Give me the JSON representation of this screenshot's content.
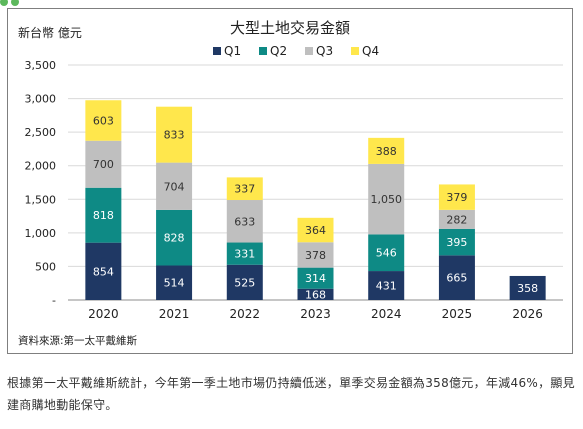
{
  "chart_data": {
    "type": "bar",
    "stacked": true,
    "title": "大型土地交易金額",
    "ylabel": "新台幣 億元",
    "xlabel": "",
    "categories": [
      "2020",
      "2021",
      "2022",
      "2023",
      "2024",
      "2025",
      "2026"
    ],
    "ylim": [
      0,
      3500
    ],
    "yticks": [
      0,
      500,
      1000,
      1500,
      2000,
      2500,
      3000,
      3500
    ],
    "ytick_labels": [
      "-",
      "500",
      "1,000",
      "1,500",
      "2,000",
      "2,500",
      "3,000",
      "3,500"
    ],
    "grid": true,
    "legend_position": "top-center",
    "series": [
      {
        "name": "Q1",
        "color": "#1f3864",
        "label_color": "#ffffff",
        "values": [
          854,
          514,
          525,
          168,
          431,
          665,
          358
        ]
      },
      {
        "name": "Q2",
        "color": "#0e8a85",
        "label_color": "#ffffff",
        "values": [
          818,
          828,
          331,
          314,
          546,
          395,
          null
        ]
      },
      {
        "name": "Q3",
        "color": "#bfbfbf",
        "label_color": "#333333",
        "values": [
          700,
          704,
          633,
          378,
          1050,
          282,
          null
        ]
      },
      {
        "name": "Q4",
        "color": "#ffe74c",
        "label_color": "#333333",
        "values": [
          603,
          833,
          337,
          364,
          388,
          379,
          null
        ]
      }
    ],
    "data_labels": [
      [
        "854",
        "514",
        "525",
        "168",
        "431",
        "665",
        "358"
      ],
      [
        "818",
        "828",
        "331",
        "314",
        "546",
        "395",
        ""
      ],
      [
        "700",
        "704",
        "633",
        "378",
        "1,050",
        "282",
        ""
      ],
      [
        "603",
        "833",
        "337",
        "364",
        "388",
        "379",
        ""
      ]
    ],
    "source": "資料來源:第一太平戴維斯"
  },
  "caption": {
    "text": "根據第一太平戴維斯統計，今年第一季土地市場仍持續低迷，單季交易金額為358億元，年減46%，顯見建商購地動能保守。"
  },
  "colors": {
    "gridline": "#d9d9d9",
    "axis": "#8c8c8c",
    "frame": "#7f7f7f",
    "accent": "#5cb85c"
  }
}
